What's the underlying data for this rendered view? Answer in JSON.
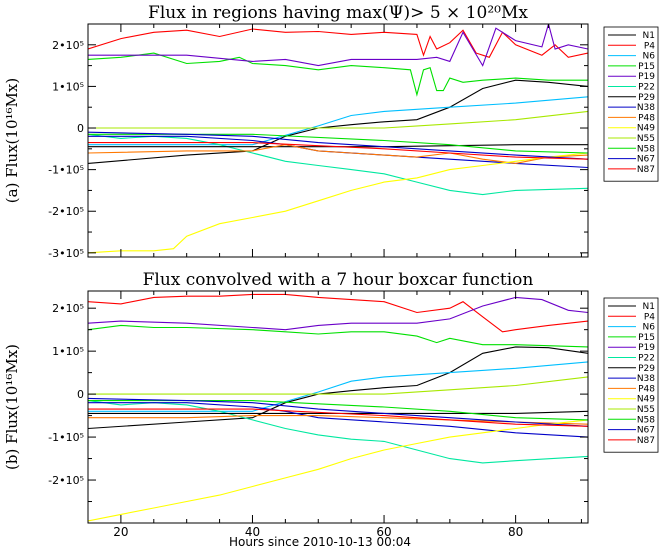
{
  "figure": {
    "xlabel": "Hours since 2010-10-13 00:04",
    "xlim": [
      15,
      91
    ],
    "xticks": [
      20,
      40,
      60,
      80
    ],
    "colors": {
      "black": "#000000",
      "red": "#ff0000",
      "cyan": "#00bfff",
      "green": "#00e000",
      "purple": "#6a00c8",
      "teal": "#00e8a0",
      "navy": "#0000c8",
      "orange": "#ff7800",
      "yellow": "#ffff00",
      "lime": "#a8e800"
    }
  },
  "chart_data": [
    {
      "type": "line",
      "panel": "a",
      "title": "Flux in regions having max(Ψ)> 5 × 10²⁰Mx",
      "ylabel": "(a)  Flux(10¹⁶Mx)",
      "ylim": [
        -310000,
        250000
      ],
      "yticks": [
        -300000,
        -200000,
        -100000,
        0,
        100000,
        200000
      ],
      "ytick_labels": [
        "-3•10⁵",
        "-2•10⁵",
        "-1•10⁵",
        "0",
        "1•10⁵",
        "2•10⁵"
      ],
      "legend": [
        "N1",
        "P4",
        "N6",
        "P15",
        "P19",
        "P22",
        "P29",
        "N38",
        "P48",
        "N49",
        "N55",
        "N58",
        "N67",
        "N87"
      ],
      "series": [
        {
          "name": "N1",
          "color": "#000000",
          "x": [
            15,
            30,
            40,
            45,
            50,
            55,
            60,
            65,
            70,
            75,
            80,
            85,
            91
          ],
          "y": [
            -85000,
            -65000,
            -55000,
            -20000,
            0,
            8000,
            15000,
            20000,
            50000,
            95000,
            115000,
            110000,
            100000
          ]
        },
        {
          "name": "P4",
          "color": "#ff0000",
          "x": [
            15,
            20,
            25,
            30,
            35,
            40,
            45,
            50,
            55,
            60,
            65,
            66,
            67,
            68,
            70,
            72,
            74,
            75,
            76,
            78,
            80,
            84,
            86,
            88,
            91
          ],
          "y": [
            190000,
            215000,
            230000,
            235000,
            220000,
            238000,
            230000,
            232000,
            225000,
            230000,
            225000,
            175000,
            220000,
            190000,
            205000,
            235000,
            180000,
            175000,
            170000,
            230000,
            200000,
            175000,
            200000,
            170000,
            180000
          ]
        },
        {
          "name": "N6",
          "color": "#00bfff",
          "x": [
            15,
            40,
            50,
            55,
            60,
            70,
            80,
            91
          ],
          "y": [
            -40000,
            -40000,
            5000,
            30000,
            40000,
            50000,
            60000,
            75000
          ]
        },
        {
          "name": "P15",
          "color": "#00e000",
          "x": [
            15,
            20,
            25,
            30,
            35,
            38,
            40,
            45,
            50,
            55,
            60,
            64,
            65,
            66,
            67,
            68,
            69,
            70,
            72,
            75,
            80,
            85,
            91
          ],
          "y": [
            165000,
            170000,
            180000,
            155000,
            160000,
            170000,
            155000,
            150000,
            140000,
            150000,
            145000,
            140000,
            80000,
            140000,
            145000,
            90000,
            90000,
            120000,
            110000,
            115000,
            120000,
            115000,
            115000
          ]
        },
        {
          "name": "P19",
          "color": "#6a00c8",
          "x": [
            15,
            30,
            40,
            45,
            50,
            55,
            60,
            65,
            68,
            70,
            72,
            75,
            77,
            80,
            84,
            85,
            86,
            88,
            91
          ],
          "y": [
            175000,
            175000,
            160000,
            165000,
            150000,
            165000,
            165000,
            165000,
            170000,
            160000,
            230000,
            150000,
            240000,
            210000,
            195000,
            250000,
            190000,
            200000,
            190000
          ]
        },
        {
          "name": "P22",
          "color": "#00e8a0",
          "x": [
            15,
            20,
            25,
            30,
            35,
            40,
            45,
            50,
            55,
            60,
            65,
            70,
            75,
            80,
            91
          ],
          "y": [
            -15000,
            -25000,
            -20000,
            -25000,
            -40000,
            -60000,
            -80000,
            -90000,
            -100000,
            -110000,
            -130000,
            -150000,
            -160000,
            -150000,
            -145000
          ]
        },
        {
          "name": "P29",
          "color": "#000000",
          "x": [
            15,
            40,
            60,
            80,
            91
          ],
          "y": [
            -45000,
            -45000,
            -45000,
            -40000,
            -40000
          ]
        },
        {
          "name": "N38",
          "color": "#0000c8",
          "x": [
            15,
            30,
            40,
            45,
            50,
            60,
            70,
            80,
            91
          ],
          "y": [
            -20000,
            -20000,
            -30000,
            -40000,
            -55000,
            -65000,
            -75000,
            -85000,
            -95000
          ]
        },
        {
          "name": "P48",
          "color": "#ff7800",
          "x": [
            15,
            30,
            40,
            45,
            50,
            55,
            60,
            65,
            70,
            75,
            80,
            85,
            91
          ],
          "y": [
            -60000,
            -55000,
            -55000,
            -40000,
            -55000,
            -60000,
            -65000,
            -70000,
            -60000,
            -75000,
            -85000,
            -70000,
            -65000
          ]
        },
        {
          "name": "N49",
          "color": "#ffff00",
          "x": [
            15,
            20,
            25,
            28,
            30,
            35,
            40,
            45,
            50,
            55,
            60,
            65,
            70,
            75,
            80,
            85,
            91
          ],
          "y": [
            -300000,
            -295000,
            -295000,
            -290000,
            -260000,
            -230000,
            -215000,
            -200000,
            -175000,
            -150000,
            -130000,
            -120000,
            -100000,
            -90000,
            -80000,
            -70000,
            -60000
          ]
        },
        {
          "name": "N55",
          "color": "#a8e800",
          "x": [
            15,
            40,
            60,
            70,
            80,
            91
          ],
          "y": [
            0,
            0,
            0,
            10000,
            20000,
            40000
          ]
        },
        {
          "name": "N58",
          "color": "#00e000",
          "x": [
            15,
            40,
            60,
            70,
            80,
            91
          ],
          "y": [
            -15000,
            -15000,
            -30000,
            -40000,
            -55000,
            -60000
          ]
        },
        {
          "name": "N67",
          "color": "#0000c8",
          "x": [
            15,
            30,
            40,
            50,
            60,
            70,
            80,
            91
          ],
          "y": [
            -10000,
            -15000,
            -20000,
            -35000,
            -45000,
            -55000,
            -65000,
            -75000
          ]
        },
        {
          "name": "N87",
          "color": "#ff0000",
          "x": [
            15,
            40,
            60,
            70,
            80,
            91
          ],
          "y": [
            -35000,
            -35000,
            -50000,
            -60000,
            -70000,
            -75000
          ]
        }
      ]
    },
    {
      "type": "line",
      "panel": "b",
      "title": "Flux convolved with a 7 hour boxcar function",
      "ylabel": "(b)  Flux(10¹⁶Mx)",
      "ylim": [
        -300000,
        240000
      ],
      "yticks": [
        -200000,
        -100000,
        0,
        100000,
        200000
      ],
      "ytick_labels": [
        "-2•10⁵",
        "-1•10⁵",
        "0",
        "1•10⁵",
        "2•10⁵"
      ],
      "legend": [
        "N1",
        "P4",
        "N6",
        "P15",
        "P19",
        "P22",
        "P29",
        "N38",
        "P48",
        "N49",
        "N55",
        "N58",
        "N67",
        "N87"
      ],
      "series": [
        {
          "name": "N1",
          "color": "#000000",
          "x": [
            15,
            30,
            40,
            45,
            50,
            55,
            60,
            65,
            70,
            75,
            80,
            85,
            91
          ],
          "y": [
            -80000,
            -65000,
            -55000,
            -20000,
            0,
            8000,
            15000,
            20000,
            50000,
            95000,
            110000,
            108000,
            95000
          ]
        },
        {
          "name": "P4",
          "color": "#ff0000",
          "x": [
            15,
            20,
            25,
            30,
            35,
            40,
            45,
            50,
            55,
            60,
            65,
            70,
            72,
            75,
            78,
            80,
            85,
            91
          ],
          "y": [
            215000,
            210000,
            225000,
            228000,
            228000,
            232000,
            232000,
            225000,
            220000,
            215000,
            190000,
            200000,
            215000,
            180000,
            145000,
            150000,
            160000,
            170000
          ]
        },
        {
          "name": "N6",
          "color": "#00bfff",
          "x": [
            15,
            40,
            50,
            55,
            60,
            70,
            80,
            91
          ],
          "y": [
            -40000,
            -40000,
            5000,
            30000,
            40000,
            50000,
            60000,
            75000
          ]
        },
        {
          "name": "P15",
          "color": "#00e000",
          "x": [
            15,
            20,
            25,
            30,
            40,
            45,
            50,
            55,
            60,
            65,
            68,
            70,
            75,
            80,
            91
          ],
          "y": [
            150000,
            160000,
            155000,
            155000,
            150000,
            145000,
            140000,
            145000,
            145000,
            135000,
            120000,
            130000,
            115000,
            115000,
            110000
          ]
        },
        {
          "name": "P19",
          "color": "#6a00c8",
          "x": [
            15,
            20,
            30,
            40,
            45,
            50,
            55,
            60,
            65,
            70,
            75,
            80,
            84,
            88,
            91
          ],
          "y": [
            165000,
            170000,
            165000,
            155000,
            150000,
            160000,
            165000,
            165000,
            165000,
            175000,
            205000,
            225000,
            220000,
            195000,
            190000
          ]
        },
        {
          "name": "P22",
          "color": "#00e8a0",
          "x": [
            15,
            20,
            25,
            30,
            35,
            40,
            45,
            50,
            55,
            60,
            65,
            70,
            75,
            80,
            91
          ],
          "y": [
            -15000,
            -25000,
            -20000,
            -25000,
            -40000,
            -60000,
            -80000,
            -95000,
            -105000,
            -110000,
            -130000,
            -150000,
            -160000,
            -155000,
            -145000
          ]
        },
        {
          "name": "P29",
          "color": "#000000",
          "x": [
            15,
            40,
            60,
            80,
            91
          ],
          "y": [
            -45000,
            -45000,
            -45000,
            -45000,
            -40000
          ]
        },
        {
          "name": "N38",
          "color": "#0000c8",
          "x": [
            15,
            30,
            40,
            45,
            50,
            60,
            70,
            80,
            91
          ],
          "y": [
            -20000,
            -20000,
            -30000,
            -40000,
            -55000,
            -65000,
            -75000,
            -90000,
            -100000
          ]
        },
        {
          "name": "P48",
          "color": "#ff7800",
          "x": [
            15,
            30,
            40,
            50,
            60,
            70,
            80,
            91
          ],
          "y": [
            -55000,
            -55000,
            -50000,
            -50000,
            -55000,
            -60000,
            -65000,
            -70000
          ]
        },
        {
          "name": "N49",
          "color": "#ffff00",
          "x": [
            15,
            20,
            25,
            30,
            35,
            40,
            45,
            50,
            55,
            60,
            65,
            70,
            75,
            80,
            85,
            91
          ],
          "y": [
            -295000,
            -280000,
            -265000,
            -250000,
            -235000,
            -215000,
            -195000,
            -175000,
            -150000,
            -130000,
            -115000,
            -100000,
            -90000,
            -80000,
            -70000,
            -60000
          ]
        },
        {
          "name": "N55",
          "color": "#a8e800",
          "x": [
            15,
            40,
            60,
            70,
            80,
            91
          ],
          "y": [
            0,
            0,
            0,
            10000,
            20000,
            40000
          ]
        },
        {
          "name": "N58",
          "color": "#00e000",
          "x": [
            15,
            40,
            60,
            70,
            80,
            91
          ],
          "y": [
            -15000,
            -15000,
            -30000,
            -40000,
            -55000,
            -60000
          ]
        },
        {
          "name": "N67",
          "color": "#0000c8",
          "x": [
            15,
            30,
            40,
            50,
            60,
            70,
            80,
            91
          ],
          "y": [
            -10000,
            -15000,
            -20000,
            -35000,
            -45000,
            -55000,
            -65000,
            -75000
          ]
        },
        {
          "name": "N87",
          "color": "#ff0000",
          "x": [
            15,
            40,
            60,
            70,
            80,
            91
          ],
          "y": [
            -35000,
            -35000,
            -50000,
            -60000,
            -70000,
            -75000
          ]
        }
      ]
    }
  ]
}
